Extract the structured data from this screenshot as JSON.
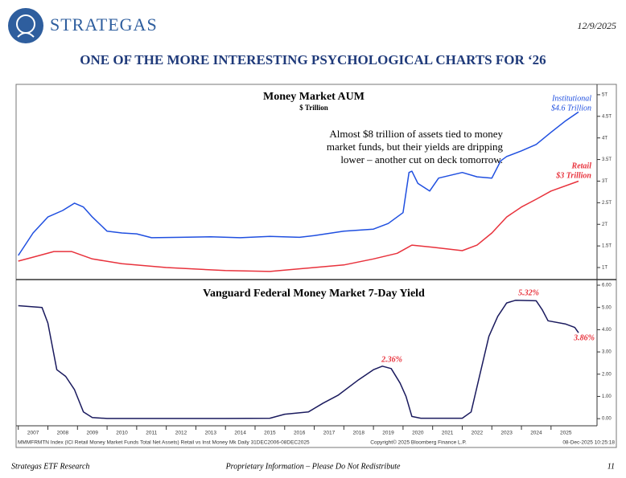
{
  "header": {
    "brand": "STRATEGAS",
    "date": "12/9/2025",
    "title": "ONE OF THE MORE INTERESTING PSYCHOLOGICAL CHARTS FOR ‘26"
  },
  "chart_data": [
    {
      "type": "line",
      "title": "Money Market AUM",
      "subtitle": "$ Trillion",
      "xlim": [
        2006.98,
        2026.5
      ],
      "ylim": [
        0.74,
        5.24
      ],
      "yticks": [
        {
          "value": 1,
          "label": "1T"
        },
        {
          "value": 1.5,
          "label": "1.5T"
        },
        {
          "value": 2,
          "label": "2T"
        },
        {
          "value": 2.5,
          "label": "2.5T"
        },
        {
          "value": 3,
          "label": "3T"
        },
        {
          "value": 3.5,
          "label": "3.5T"
        },
        {
          "value": 4,
          "label": "4T"
        },
        {
          "value": 4.5,
          "label": "4.5T"
        },
        {
          "value": 5,
          "label": "5T"
        }
      ],
      "series": [
        {
          "name": "Institutional",
          "color": "#1f4fe0",
          "x": [
            2007.0,
            2007.5,
            2008.0,
            2008.5,
            2008.9,
            2009.2,
            2009.5,
            2010.0,
            2010.5,
            2011.0,
            2011.5,
            2012.5,
            2013.5,
            2014.5,
            2015.5,
            2016.5,
            2017.0,
            2018.0,
            2019.0,
            2019.5,
            2020.0,
            2020.2,
            2020.3,
            2020.5,
            2020.9,
            2021.2,
            2022.0,
            2022.5,
            2023.0,
            2023.3,
            2023.5,
            2024.0,
            2024.5,
            2025.0,
            2025.5,
            2025.93
          ],
          "values": [
            1.28,
            1.8,
            2.17,
            2.32,
            2.49,
            2.4,
            2.17,
            1.84,
            1.8,
            1.78,
            1.69,
            1.7,
            1.71,
            1.69,
            1.72,
            1.7,
            1.74,
            1.84,
            1.89,
            2.02,
            2.27,
            3.2,
            3.23,
            2.95,
            2.77,
            3.07,
            3.2,
            3.1,
            3.07,
            3.47,
            3.57,
            3.7,
            3.85,
            4.13,
            4.4,
            4.6
          ]
        },
        {
          "name": "Retail",
          "color": "#e8323c",
          "x": [
            2007.0,
            2007.5,
            2008.2,
            2008.8,
            2009.5,
            2010.5,
            2012.0,
            2014.0,
            2015.5,
            2017.0,
            2018.0,
            2019.0,
            2019.8,
            2020.3,
            2021.0,
            2022.0,
            2022.5,
            2023.0,
            2023.5,
            2024.0,
            2024.5,
            2025.0,
            2025.93
          ],
          "values": [
            1.15,
            1.24,
            1.37,
            1.37,
            1.2,
            1.09,
            1.0,
            0.93,
            0.91,
            1.0,
            1.06,
            1.2,
            1.33,
            1.52,
            1.47,
            1.39,
            1.52,
            1.8,
            2.17,
            2.4,
            2.58,
            2.77,
            3.0
          ]
        }
      ],
      "annotations": [
        [
          "Institutional",
          "$4.6 Trillion"
        ],
        [
          "Retail",
          "$3 Trillion"
        ],
        [
          "Almost $8 trillion of assets tied to money",
          "market funds, but their yields are dripping",
          "lower – another cut on deck tomorrow."
        ]
      ]
    },
    {
      "type": "line",
      "title": "Vanguard Federal Money Market 7-Day Yield",
      "xlim": [
        2006.98,
        2026.5
      ],
      "ylim": [
        -0.32,
        6.18
      ],
      "xticks": [
        2007,
        2008,
        2009,
        2010,
        2011,
        2012,
        2013,
        2014,
        2015,
        2016,
        2017,
        2018,
        2019,
        2020,
        2021,
        2022,
        2023,
        2024,
        2025
      ],
      "yticks": [
        {
          "value": 0,
          "label": "0.00"
        },
        {
          "value": 1,
          "label": "1.00"
        },
        {
          "value": 2,
          "label": "2.00"
        },
        {
          "value": 3,
          "label": "3.00"
        },
        {
          "value": 4,
          "label": "4.00"
        },
        {
          "value": 5,
          "label": "5.00"
        },
        {
          "value": 6,
          "label": "6.00"
        }
      ],
      "series": [
        {
          "name": "Vanguard Federal Money Market 7-Day Yield",
          "color": "#1a1a5e",
          "x": [
            2007.0,
            2007.8,
            2008.0,
            2008.3,
            2008.6,
            2008.9,
            2009.2,
            2009.5,
            2010.0,
            2012.0,
            2014.0,
            2015.5,
            2016.0,
            2016.8,
            2017.3,
            2017.8,
            2018.5,
            2019.0,
            2019.3,
            2019.6,
            2019.9,
            2020.1,
            2020.3,
            2020.6,
            2022.0,
            2022.3,
            2022.6,
            2022.9,
            2023.2,
            2023.5,
            2023.8,
            2024.5,
            2024.7,
            2024.9,
            2025.5,
            2025.8,
            2025.93
          ],
          "values": [
            5.08,
            5.0,
            4.3,
            2.2,
            1.9,
            1.3,
            0.3,
            0.05,
            0.01,
            0.01,
            0.01,
            0.02,
            0.2,
            0.3,
            0.7,
            1.05,
            1.75,
            2.2,
            2.36,
            2.25,
            1.6,
            1.0,
            0.1,
            0.02,
            0.02,
            0.3,
            2.0,
            3.7,
            4.6,
            5.2,
            5.32,
            5.3,
            4.9,
            4.4,
            4.25,
            4.1,
            3.86
          ]
        }
      ],
      "annotations": [
        "2.36%",
        "5.32%",
        "3.86%"
      ]
    }
  ],
  "source": [
    "MMMFRMTN Index (ICI Retail Money Market Funds Total Net Assets) Retail vs Inst Money Mk Daily 31DEC2006-08DEC2025",
    "Copyright© 2025 Bloomberg Finance L.P.",
    "08-Dec-2025 10:25:18"
  ],
  "footer": {
    "left": "Strategas ETF Research",
    "center": "Proprietary Information – Please Do Not Redistribute",
    "page": "11"
  }
}
